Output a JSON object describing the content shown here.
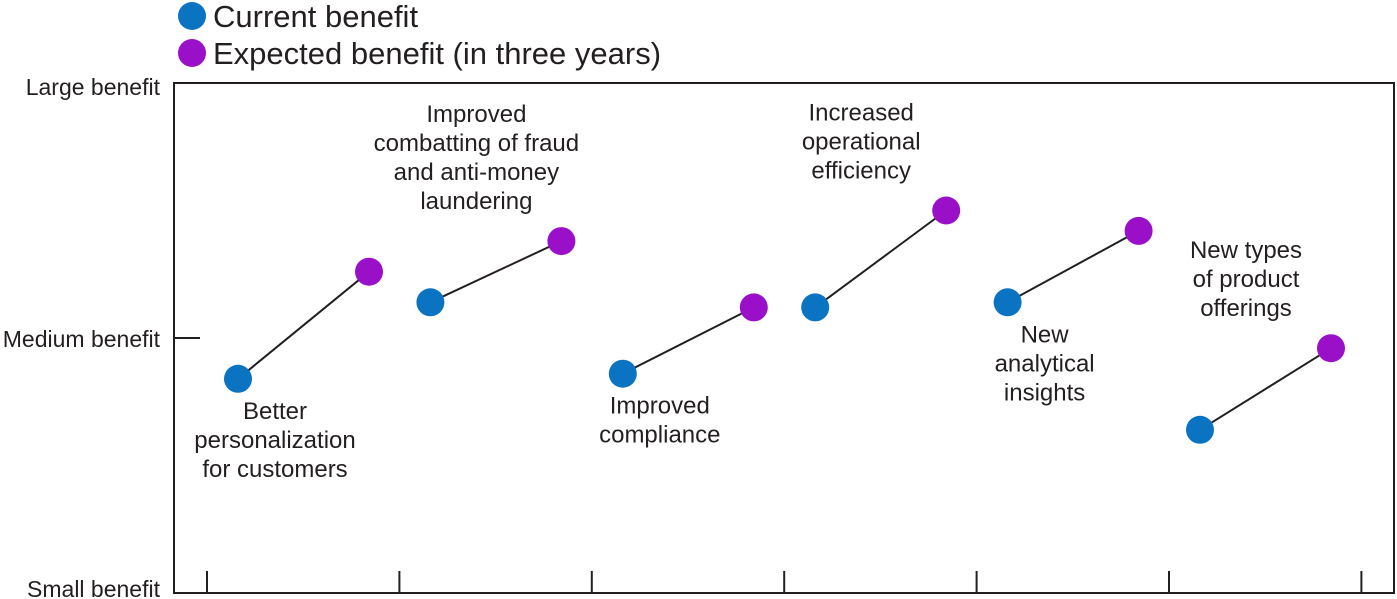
{
  "chart_data": {
    "type": "scatter",
    "title": "",
    "xlabel": "",
    "ylabel": "",
    "ylim": [
      0,
      10
    ],
    "y_ticks": [
      {
        "value": 0,
        "label": "Small benefit"
      },
      {
        "value": 5,
        "label": "Medium benefit"
      },
      {
        "value": 10,
        "label": "Large benefit"
      }
    ],
    "legend": {
      "placement": "top-left",
      "entries": [
        {
          "name": "Current benefit",
          "color": "#0a73c2"
        },
        {
          "name": "Expected benefit (in three years)",
          "color": "#9a10c9"
        }
      ]
    },
    "grid": false,
    "categories": [
      "Better personalization for customers",
      "Improved combatting of fraud and anti-money laundering",
      "Improved compliance",
      "Increased operational efficiency",
      "New analytical insights",
      "New types of product offerings"
    ],
    "items": [
      {
        "label_lines": [
          "Better",
          "personalization",
          "for customers"
        ],
        "label_pos": "below",
        "current": 4.2,
        "expected": 6.3
      },
      {
        "label_lines": [
          "Improved",
          "combatting of fraud",
          "and anti-money",
          "laundering"
        ],
        "label_pos": "above",
        "current": 5.7,
        "expected": 6.9
      },
      {
        "label_lines": [
          "Improved",
          "compliance"
        ],
        "label_pos": "below",
        "current": 4.3,
        "expected": 5.6
      },
      {
        "label_lines": [
          "Increased",
          "operational",
          "efficiency"
        ],
        "label_pos": "above",
        "current": 5.6,
        "expected": 7.5
      },
      {
        "label_lines": [
          "New",
          "analytical",
          "insights"
        ],
        "label_pos": "below",
        "current": 5.7,
        "expected": 7.1
      },
      {
        "label_lines": [
          "New types",
          "of product",
          "offerings"
        ],
        "label_pos": "above",
        "current": 3.2,
        "expected": 4.8
      }
    ],
    "series": [
      {
        "name": "Current benefit",
        "values": [
          4.2,
          5.7,
          4.3,
          5.6,
          5.7,
          3.2
        ]
      },
      {
        "name": "Expected benefit (in three years)",
        "values": [
          6.3,
          6.9,
          5.6,
          7.5,
          7.1,
          4.8
        ]
      }
    ]
  }
}
